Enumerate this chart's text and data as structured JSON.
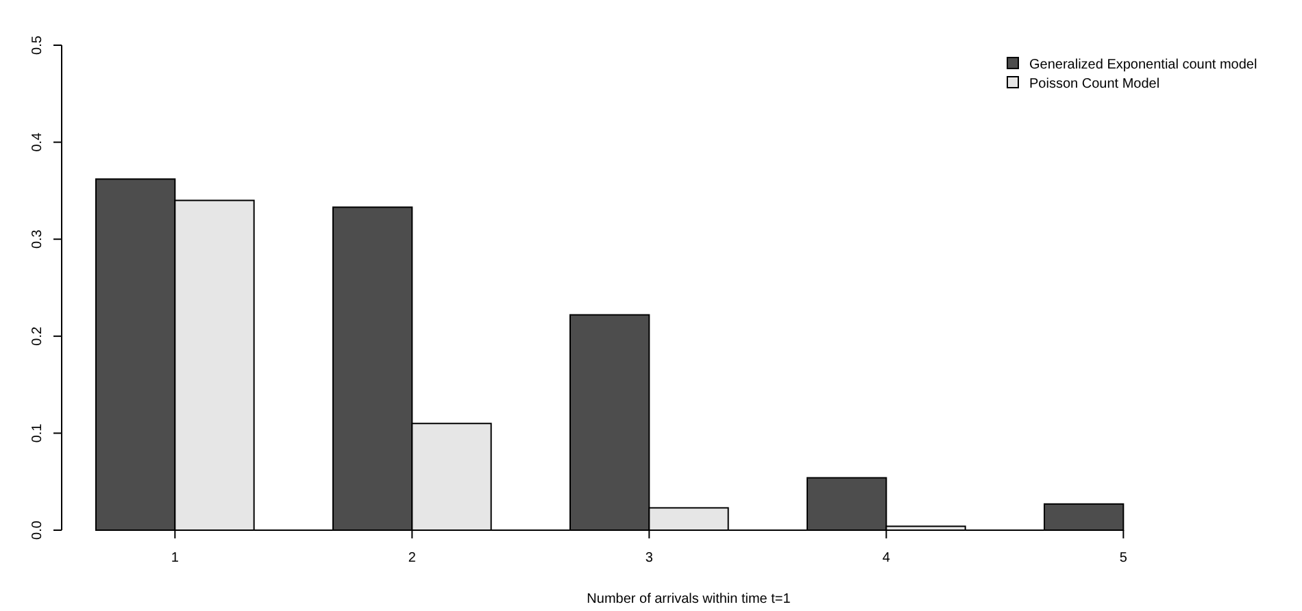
{
  "chart_data": {
    "type": "bar",
    "xlabel": "Number of arrivals within time t=1",
    "categories": [
      "1",
      "2",
      "3",
      "4",
      "5"
    ],
    "series": [
      {
        "name": "Generalized Exponential count model",
        "color": "#4d4d4d",
        "values": [
          0.362,
          0.333,
          0.222,
          0.054,
          0.027
        ]
      },
      {
        "name": "Poisson Count Model",
        "color": "#e6e6e6",
        "values": [
          0.34,
          0.11,
          0.023,
          0.004,
          null
        ]
      }
    ],
    "ylim": [
      0,
      0.5
    ],
    "yticks": [
      {
        "value": 0,
        "label": "0.0"
      },
      {
        "value": 0.1,
        "label": "0.1"
      },
      {
        "value": 0.2,
        "label": "0.2"
      },
      {
        "value": 0.3,
        "label": "0.3"
      },
      {
        "value": 0.4,
        "label": "0.4"
      },
      {
        "value": 0.5,
        "label": "0.5"
      }
    ],
    "legend": "top right",
    "grid": false
  }
}
